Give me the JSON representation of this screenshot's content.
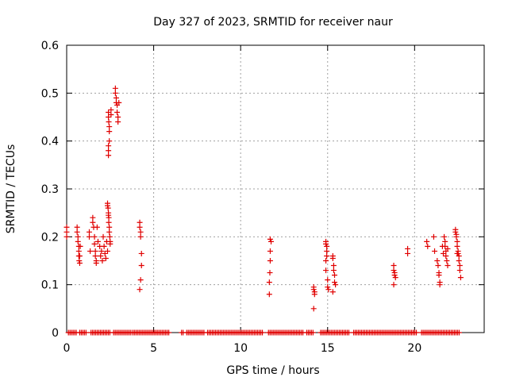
{
  "chart_data": {
    "type": "scatter",
    "title": "Day 327 of 2023, SRMTID for receiver naur",
    "xlabel": "GPS time / hours",
    "ylabel": "SRMTID / TECUs",
    "xlim": [
      0,
      24
    ],
    "ylim": [
      0,
      0.6
    ],
    "xticks": [
      0,
      5,
      10,
      15,
      20
    ],
    "xtick_labels": [
      "0",
      "5",
      "10",
      "15",
      "20"
    ],
    "yticks": [
      0,
      0.1,
      0.2,
      0.3,
      0.4,
      0.5,
      0.6
    ],
    "ytick_labels": [
      "0",
      "0.1",
      "0.2",
      "0.3",
      "0.4",
      "0.5",
      "0.6"
    ],
    "grid": true,
    "marker": "plus",
    "color": "#e00000",
    "series": [
      {
        "name": "SRMTID",
        "points": [
          [
            0.0,
            0.21
          ],
          [
            0.0,
            0.2
          ],
          [
            0.0,
            0.22
          ],
          [
            0.6,
            0.22
          ],
          [
            0.6,
            0.21
          ],
          [
            0.65,
            0.2
          ],
          [
            0.65,
            0.19
          ],
          [
            0.7,
            0.18
          ],
          [
            0.7,
            0.17
          ],
          [
            0.7,
            0.16
          ],
          [
            0.72,
            0.15
          ],
          [
            0.75,
            0.145
          ],
          [
            0.75,
            0.16
          ],
          [
            0.78,
            0.18
          ],
          [
            1.3,
            0.21
          ],
          [
            1.3,
            0.2
          ],
          [
            1.35,
            0.17
          ],
          [
            1.5,
            0.24
          ],
          [
            1.5,
            0.23
          ],
          [
            1.55,
            0.22
          ],
          [
            1.6,
            0.2
          ],
          [
            1.6,
            0.185
          ],
          [
            1.65,
            0.17
          ],
          [
            1.65,
            0.16
          ],
          [
            1.7,
            0.15
          ],
          [
            1.7,
            0.145
          ],
          [
            1.75,
            0.22
          ],
          [
            1.8,
            0.19
          ],
          [
            1.9,
            0.18
          ],
          [
            1.95,
            0.16
          ],
          [
            2.0,
            0.17
          ],
          [
            2.05,
            0.15
          ],
          [
            2.1,
            0.2
          ],
          [
            2.15,
            0.18
          ],
          [
            2.2,
            0.165
          ],
          [
            2.25,
            0.155
          ],
          [
            2.3,
            0.19
          ],
          [
            2.35,
            0.17
          ],
          [
            2.35,
            0.27
          ],
          [
            2.35,
            0.265
          ],
          [
            2.38,
            0.26
          ],
          [
            2.4,
            0.25
          ],
          [
            2.4,
            0.245
          ],
          [
            2.42,
            0.24
          ],
          [
            2.42,
            0.23
          ],
          [
            2.45,
            0.22
          ],
          [
            2.45,
            0.21
          ],
          [
            2.48,
            0.2
          ],
          [
            2.5,
            0.19
          ],
          [
            2.5,
            0.185
          ],
          [
            2.4,
            0.46
          ],
          [
            2.4,
            0.45
          ],
          [
            2.42,
            0.44
          ],
          [
            2.45,
            0.43
          ],
          [
            2.45,
            0.42
          ],
          [
            2.45,
            0.4
          ],
          [
            2.4,
            0.39
          ],
          [
            2.4,
            0.38
          ],
          [
            2.4,
            0.37
          ],
          [
            2.55,
            0.465
          ],
          [
            2.55,
            0.455
          ],
          [
            2.8,
            0.51
          ],
          [
            2.8,
            0.5
          ],
          [
            2.85,
            0.49
          ],
          [
            2.85,
            0.48
          ],
          [
            2.9,
            0.475
          ],
          [
            2.9,
            0.46
          ],
          [
            2.95,
            0.45
          ],
          [
            2.95,
            0.44
          ],
          [
            3.0,
            0.48
          ],
          [
            4.2,
            0.23
          ],
          [
            4.2,
            0.22
          ],
          [
            4.25,
            0.21
          ],
          [
            4.25,
            0.2
          ],
          [
            4.3,
            0.165
          ],
          [
            4.3,
            0.14
          ],
          [
            4.25,
            0.11
          ],
          [
            4.2,
            0.09
          ],
          [
            11.7,
            0.195
          ],
          [
            11.75,
            0.19
          ],
          [
            11.7,
            0.17
          ],
          [
            11.7,
            0.15
          ],
          [
            11.68,
            0.125
          ],
          [
            11.65,
            0.105
          ],
          [
            11.65,
            0.08
          ],
          [
            14.2,
            0.095
          ],
          [
            14.2,
            0.09
          ],
          [
            14.25,
            0.085
          ],
          [
            14.25,
            0.08
          ],
          [
            14.2,
            0.05
          ],
          [
            14.9,
            0.19
          ],
          [
            14.9,
            0.185
          ],
          [
            14.95,
            0.18
          ],
          [
            14.95,
            0.17
          ],
          [
            14.95,
            0.16
          ],
          [
            14.9,
            0.15
          ],
          [
            14.9,
            0.13
          ],
          [
            15.0,
            0.11
          ],
          [
            15.0,
            0.095
          ],
          [
            15.05,
            0.09
          ],
          [
            15.3,
            0.16
          ],
          [
            15.3,
            0.155
          ],
          [
            15.35,
            0.14
          ],
          [
            15.35,
            0.13
          ],
          [
            15.4,
            0.12
          ],
          [
            15.4,
            0.105
          ],
          [
            15.45,
            0.1
          ],
          [
            15.3,
            0.085
          ],
          [
            18.8,
            0.14
          ],
          [
            18.8,
            0.13
          ],
          [
            18.85,
            0.125
          ],
          [
            18.85,
            0.12
          ],
          [
            18.9,
            0.115
          ],
          [
            18.8,
            0.1
          ],
          [
            19.6,
            0.175
          ],
          [
            19.6,
            0.165
          ],
          [
            20.7,
            0.19
          ],
          [
            20.75,
            0.18
          ],
          [
            21.1,
            0.2
          ],
          [
            21.15,
            0.17
          ],
          [
            21.3,
            0.15
          ],
          [
            21.35,
            0.14
          ],
          [
            21.4,
            0.125
          ],
          [
            21.4,
            0.12
          ],
          [
            21.45,
            0.105
          ],
          [
            21.45,
            0.1
          ],
          [
            21.6,
            0.18
          ],
          [
            21.65,
            0.165
          ],
          [
            21.7,
            0.2
          ],
          [
            21.75,
            0.19
          ],
          [
            21.75,
            0.18
          ],
          [
            21.8,
            0.17
          ],
          [
            21.8,
            0.16
          ],
          [
            21.85,
            0.15
          ],
          [
            21.9,
            0.14
          ],
          [
            21.9,
            0.175
          ],
          [
            22.35,
            0.215
          ],
          [
            22.35,
            0.21
          ],
          [
            22.4,
            0.205
          ],
          [
            22.4,
            0.2
          ],
          [
            22.45,
            0.19
          ],
          [
            22.45,
            0.18
          ],
          [
            22.5,
            0.17
          ],
          [
            22.5,
            0.165
          ],
          [
            22.55,
            0.16
          ],
          [
            22.55,
            0.15
          ],
          [
            22.6,
            0.14
          ],
          [
            22.6,
            0.13
          ],
          [
            22.65,
            0.115
          ],
          [
            22.45,
            0.165
          ]
        ],
        "zero_rows": [
          [
            0.1,
            0.6
          ],
          [
            0.75,
            1.15
          ],
          [
            1.4,
            2.5
          ],
          [
            2.7,
            3.7
          ],
          [
            3.8,
            5.9
          ],
          [
            6.6,
            6.7
          ],
          [
            6.9,
            7.9
          ],
          [
            8.1,
            11.3
          ],
          [
            11.6,
            13.6
          ],
          [
            13.8,
            14.2
          ],
          [
            14.6,
            16.3
          ],
          [
            16.5,
            20.1
          ],
          [
            20.4,
            22.6
          ]
        ],
        "zero_step_hours": 0.09
      }
    ]
  }
}
